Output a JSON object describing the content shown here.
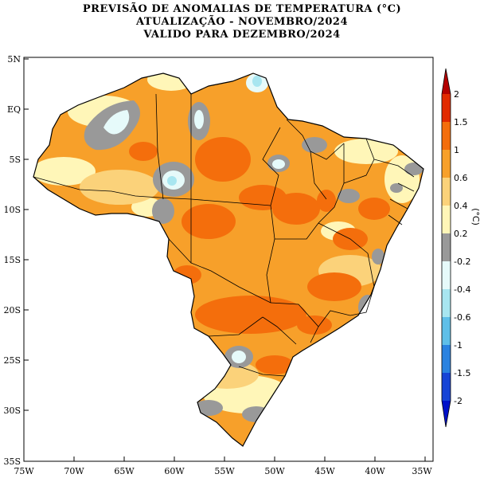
{
  "title": {
    "line1": "PREVISÃO DE ANOMALIAS DE TEMPERATURA (°C)",
    "line2": "ATUALIZAÇÃO - NOVEMBRO/2024",
    "line3": "VALIDO PARA DEZEMBRO/2024"
  },
  "axes": {
    "lat_labels": [
      "5N",
      "EQ",
      "5S",
      "10S",
      "15S",
      "20S",
      "25S",
      "30S",
      "35S"
    ],
    "lon_labels": [
      "75W",
      "70W",
      "65W",
      "60W",
      "55W",
      "50W",
      "45W",
      "40W",
      "35W"
    ]
  },
  "colorbar": {
    "unit": "(°C)",
    "labels": [
      "2",
      "1.5",
      "1",
      "0.6",
      "0.4",
      "0.2",
      "-0.2",
      "-0.4",
      "-0.6",
      "-1",
      "-1.5",
      "-2"
    ],
    "colors": [
      "#b40000",
      "#e22a00",
      "#f46e0c",
      "#f7a02a",
      "#fbd27a",
      "#fff6b8",
      "#999999",
      "#e6fafa",
      "#a8e6f0",
      "#5fbfe8",
      "#2a82e0",
      "#1644d6",
      "#0010c8"
    ]
  },
  "legend_colors": {
    "strong_pos": "#f46e0c",
    "mod_pos": "#f7a02a",
    "weak_pos": "#fbd27a",
    "light_pos": "#fff6b8",
    "neutral": "#999999",
    "light_neg": "#e6fafa",
    "mod_neg": "#a8e6f0"
  }
}
